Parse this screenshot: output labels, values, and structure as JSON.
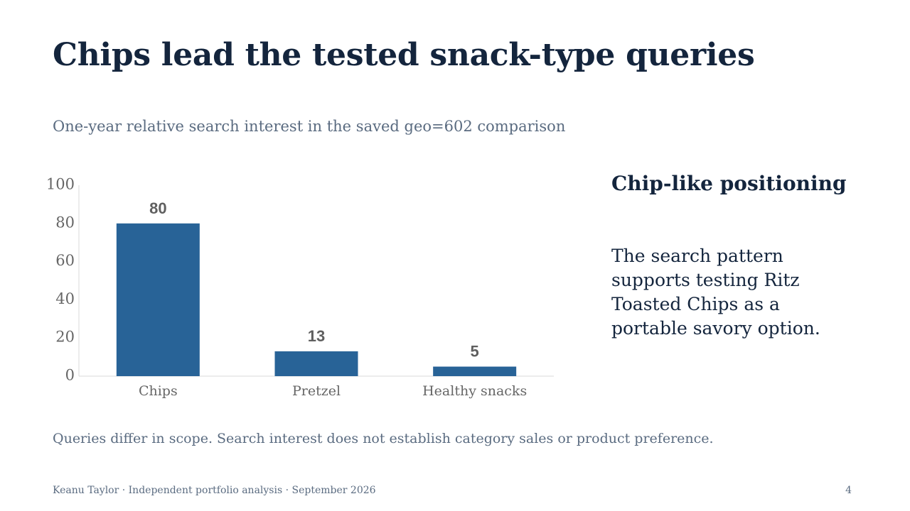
{
  "slide": {
    "title": "Chips lead the tested snack-type queries",
    "subtitle": "One-year relative search interest in the saved geo=602 comparison",
    "side_heading": "Chip-like positioning",
    "side_body": "The search pattern supports testing Ritz Toasted Chips as a portable savory option.",
    "caveat": "Queries differ in scope. Search interest does not establish category sales or product preference.",
    "footer": "Keanu Taylor · Independent portfolio analysis · September 2026",
    "page_number": "4"
  },
  "colors": {
    "bar": "#286397",
    "axis_text": "#666666",
    "value_label": "#5f5f5f",
    "axis_line": "#d9d9d9"
  },
  "chart_data": {
    "type": "bar",
    "categories": [
      "Chips",
      "Pretzel",
      "Healthy snacks"
    ],
    "values": [
      80,
      13,
      5
    ],
    "yticks": [
      0,
      20,
      40,
      60,
      80,
      100
    ],
    "ylim": [
      0,
      100
    ],
    "data_labels": true,
    "grid": false
  }
}
